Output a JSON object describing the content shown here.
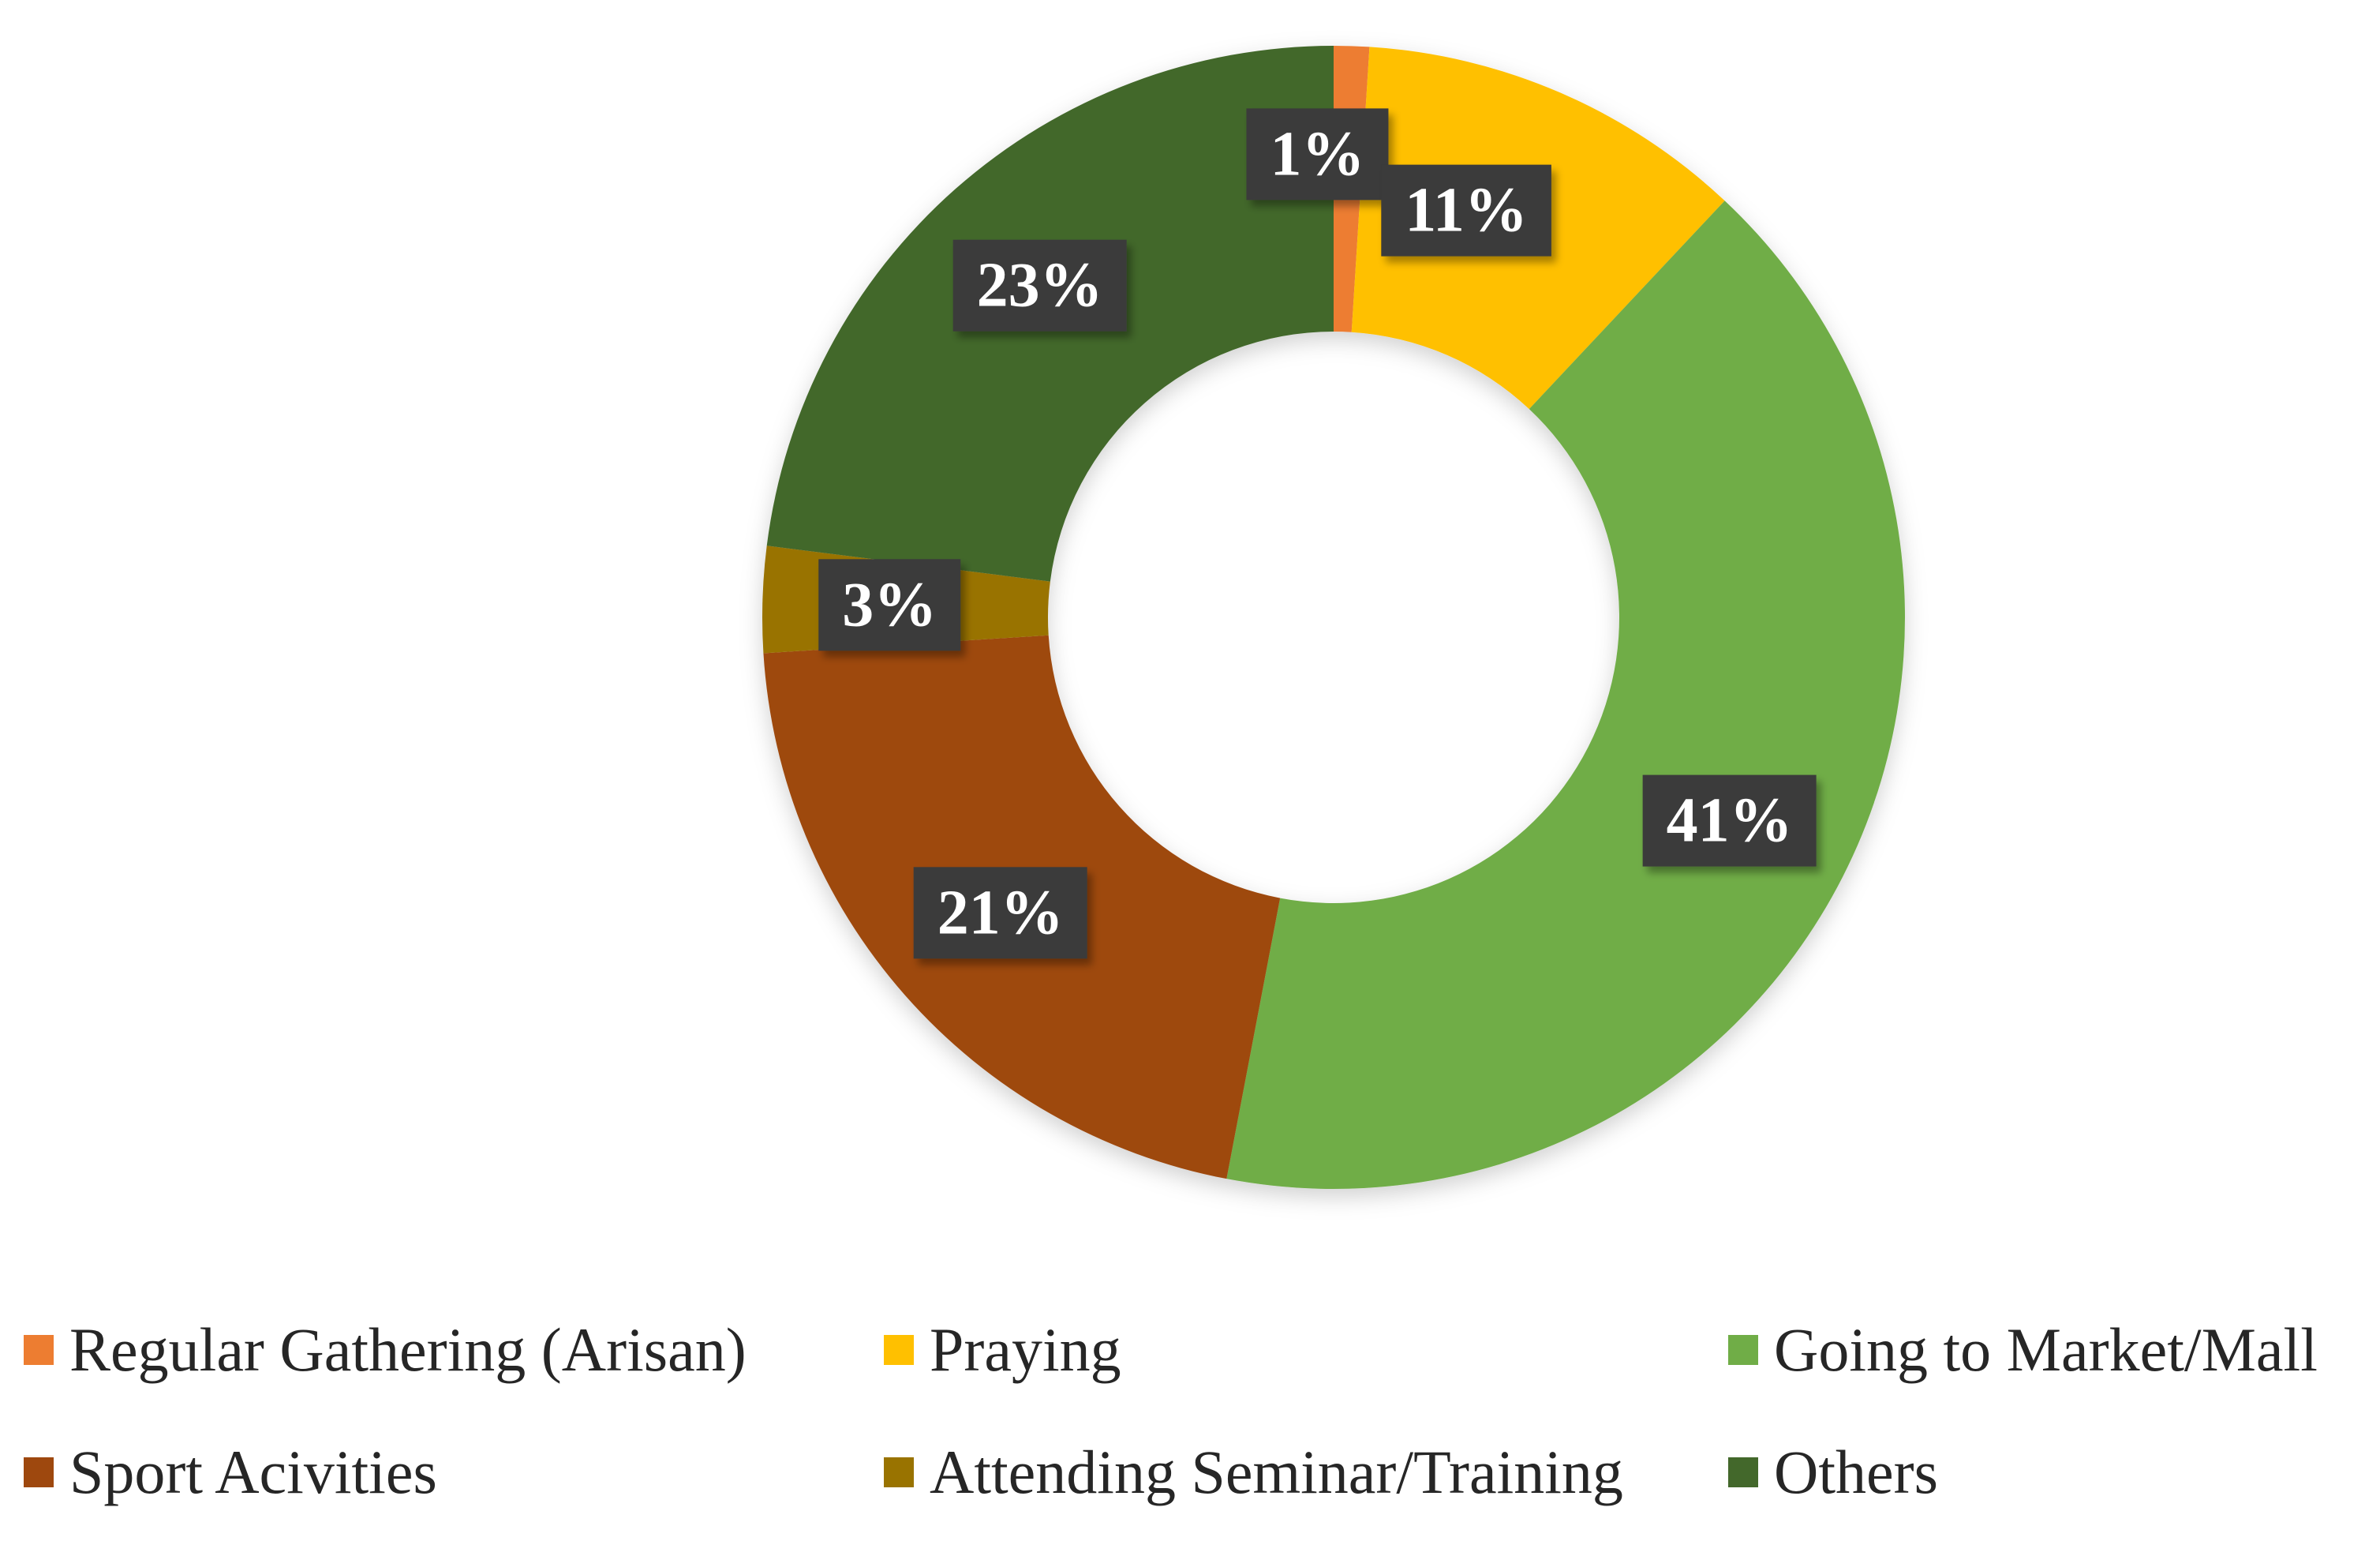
{
  "chart_data": {
    "type": "pie",
    "subtype": "donut",
    "title": "",
    "categories": [
      "Regular Gathering (Arisan)",
      "Praying",
      "Going to Market/Mall",
      "Sport Acivities",
      "Attending Seminar/Training",
      "Others"
    ],
    "values": [
      1,
      11,
      41,
      21,
      3,
      23
    ],
    "data_labels": [
      "1%",
      "11%",
      "41%",
      "21%",
      "3%",
      "23%"
    ],
    "colors": [
      "#ED7D31",
      "#FFC000",
      "#70AD47",
      "#9E480E",
      "#997300",
      "#43682B"
    ],
    "label_box_color": "#3B3B3B",
    "legend_position": "bottom"
  }
}
